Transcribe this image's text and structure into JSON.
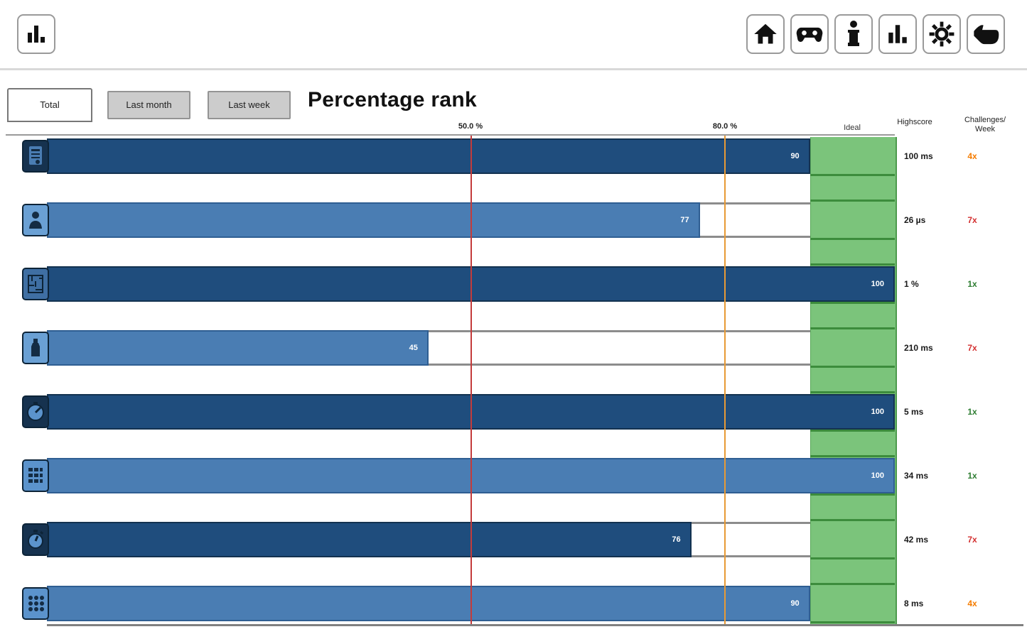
{
  "toolbar": {
    "left_buttons": [
      {
        "icon": "bar-chart-icon"
      }
    ],
    "right_buttons": [
      {
        "icon": "home-icon"
      },
      {
        "icon": "gamepad-icon"
      },
      {
        "icon": "info-icon"
      },
      {
        "icon": "bar-chart-icon"
      },
      {
        "icon": "gear-icon"
      },
      {
        "icon": "hand-pointer-icon"
      }
    ]
  },
  "tabs": [
    {
      "label": "Total",
      "active": true
    },
    {
      "label": "Last month",
      "active": false
    },
    {
      "label": "Last week",
      "active": false
    }
  ],
  "title": "Percentage rank",
  "chart": {
    "tick_labels": [
      "50.0 %",
      "80.0 %"
    ],
    "ideal_label": "Ideal",
    "col_highscore": "Highscore",
    "col_challenges_line1": "Challenges/",
    "col_challenges_line2": "Week"
  },
  "rows": [
    {
      "icon": "reaction-card-icon",
      "value": 90,
      "shade": "dark",
      "highscore": "100 ms",
      "challenges": "4x",
      "challenge_color": "#f57c00"
    },
    {
      "icon": "person-icon",
      "value": 77,
      "shade": "light",
      "highscore": "26 µs",
      "challenges": "7x",
      "challenge_color": "#d32f2f"
    },
    {
      "icon": "maze-icon",
      "value": 100,
      "shade": "dark",
      "highscore": "1 %",
      "challenges": "1x",
      "challenge_color": "#2e7d32"
    },
    {
      "icon": "bottle-icon",
      "value": 45,
      "shade": "light",
      "highscore": "210 ms",
      "challenges": "7x",
      "challenge_color": "#d32f2f"
    },
    {
      "icon": "gauge-icon",
      "value": 100,
      "shade": "dark",
      "highscore": "5 ms",
      "challenges": "1x",
      "challenge_color": "#2e7d32"
    },
    {
      "icon": "keypad-icon",
      "value": 100,
      "shade": "light",
      "highscore": "34 ms",
      "challenges": "1x",
      "challenge_color": "#2e7d32"
    },
    {
      "icon": "stopwatch-icon",
      "value": 76,
      "shade": "dark",
      "highscore": "42 ms",
      "challenges": "7x",
      "challenge_color": "#d32f2f"
    },
    {
      "icon": "dots-grid-icon",
      "value": 90,
      "shade": "light",
      "highscore": "8 ms",
      "challenges": "4x",
      "challenge_color": "#f57c00"
    }
  ],
  "chart_data": {
    "type": "bar",
    "orientation": "horizontal",
    "title": "Percentage rank",
    "categories": [
      "game-1",
      "game-2",
      "game-3",
      "game-4",
      "game-5",
      "game-6",
      "game-7",
      "game-8"
    ],
    "values": [
      90,
      77,
      100,
      45,
      100,
      100,
      76,
      90
    ],
    "xlim": [
      0,
      100
    ],
    "reference_lines": [
      {
        "pct": 50,
        "label": "50.0 %",
        "color": "#c43b3b"
      },
      {
        "pct": 80,
        "label": "80.0 %",
        "color": "#e89a35"
      }
    ],
    "ideal_zone": {
      "from": 90,
      "to": 100,
      "label": "Ideal"
    },
    "highscores": [
      "100 ms",
      "26 µs",
      "1 %",
      "210 ms",
      "5 ms",
      "34 ms",
      "42 ms",
      "8 ms"
    ],
    "challenges_per_week": [
      "4x",
      "7x",
      "1x",
      "7x",
      "1x",
      "1x",
      "7x",
      "4x"
    ],
    "legend": "none",
    "grid": "vertical reference lines only"
  },
  "colors": {
    "bar_dark": "#1f4d7d",
    "bar_light": "#4a7db3",
    "ideal_green": "#7bc47b",
    "line_50": "#c43b3b",
    "line_80": "#e89a35",
    "challenge_orange": "#f57c00",
    "challenge_red": "#d32f2f",
    "challenge_green": "#2e7d32"
  }
}
